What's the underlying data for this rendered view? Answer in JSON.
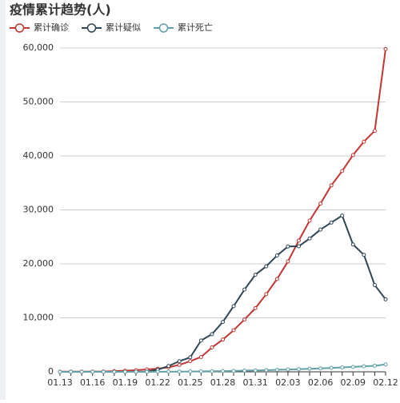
{
  "chart_data": {
    "type": "line",
    "title": "疫情累计趋势(人)",
    "categories": [
      "01.13",
      null,
      null,
      "01.16",
      null,
      null,
      "01.19",
      null,
      null,
      "01.22",
      null,
      null,
      "01.25",
      null,
      null,
      "01.28",
      null,
      null,
      "01.31",
      null,
      null,
      "02.03",
      null,
      null,
      "02.06",
      null,
      null,
      "02.09",
      null,
      null,
      "02.12"
    ],
    "series": [
      {
        "name": "累计确诊",
        "color": "#c23531",
        "values": [
          41,
          41,
          41,
          45,
          62,
          121,
          198,
          291,
          440,
          571,
          830,
          1287,
          1975,
          2744,
          4515,
          5974,
          7711,
          9692,
          11791,
          14380,
          17205,
          20438,
          24324,
          28018,
          31161,
          34546,
          37198,
          40171,
          42638,
          44653,
          59804
        ]
      },
      {
        "name": "累计疑似",
        "color": "#2f4554",
        "values": [
          0,
          0,
          0,
          0,
          0,
          0,
          0,
          0,
          37,
          393,
          1072,
          1965,
          2684,
          5794,
          6973,
          9239,
          12167,
          15238,
          17988,
          19544,
          21558,
          23214,
          23260,
          24702,
          26359,
          27657,
          28942,
          23589,
          21675,
          16067,
          13435
        ]
      },
      {
        "name": "累计死亡",
        "color": "#61a0a8",
        "values": [
          1,
          1,
          2,
          2,
          2,
          3,
          4,
          6,
          9,
          17,
          25,
          41,
          56,
          80,
          106,
          132,
          170,
          213,
          259,
          304,
          361,
          425,
          490,
          563,
          636,
          722,
          811,
          908,
          1016,
          1113,
          1368
        ]
      }
    ],
    "ylim": [
      0,
      60000
    ],
    "yticks": [
      0,
      {
        "value": 10000,
        "label": "10,000"
      },
      {
        "value": 20000,
        "label": "20,000"
      },
      {
        "value": 30000,
        "label": "30,000"
      },
      {
        "value": 40000,
        "label": "40,000"
      },
      {
        "value": 50000,
        "label": "50,000"
      },
      {
        "value": 60000,
        "label": "60,000"
      }
    ],
    "grid": true
  }
}
